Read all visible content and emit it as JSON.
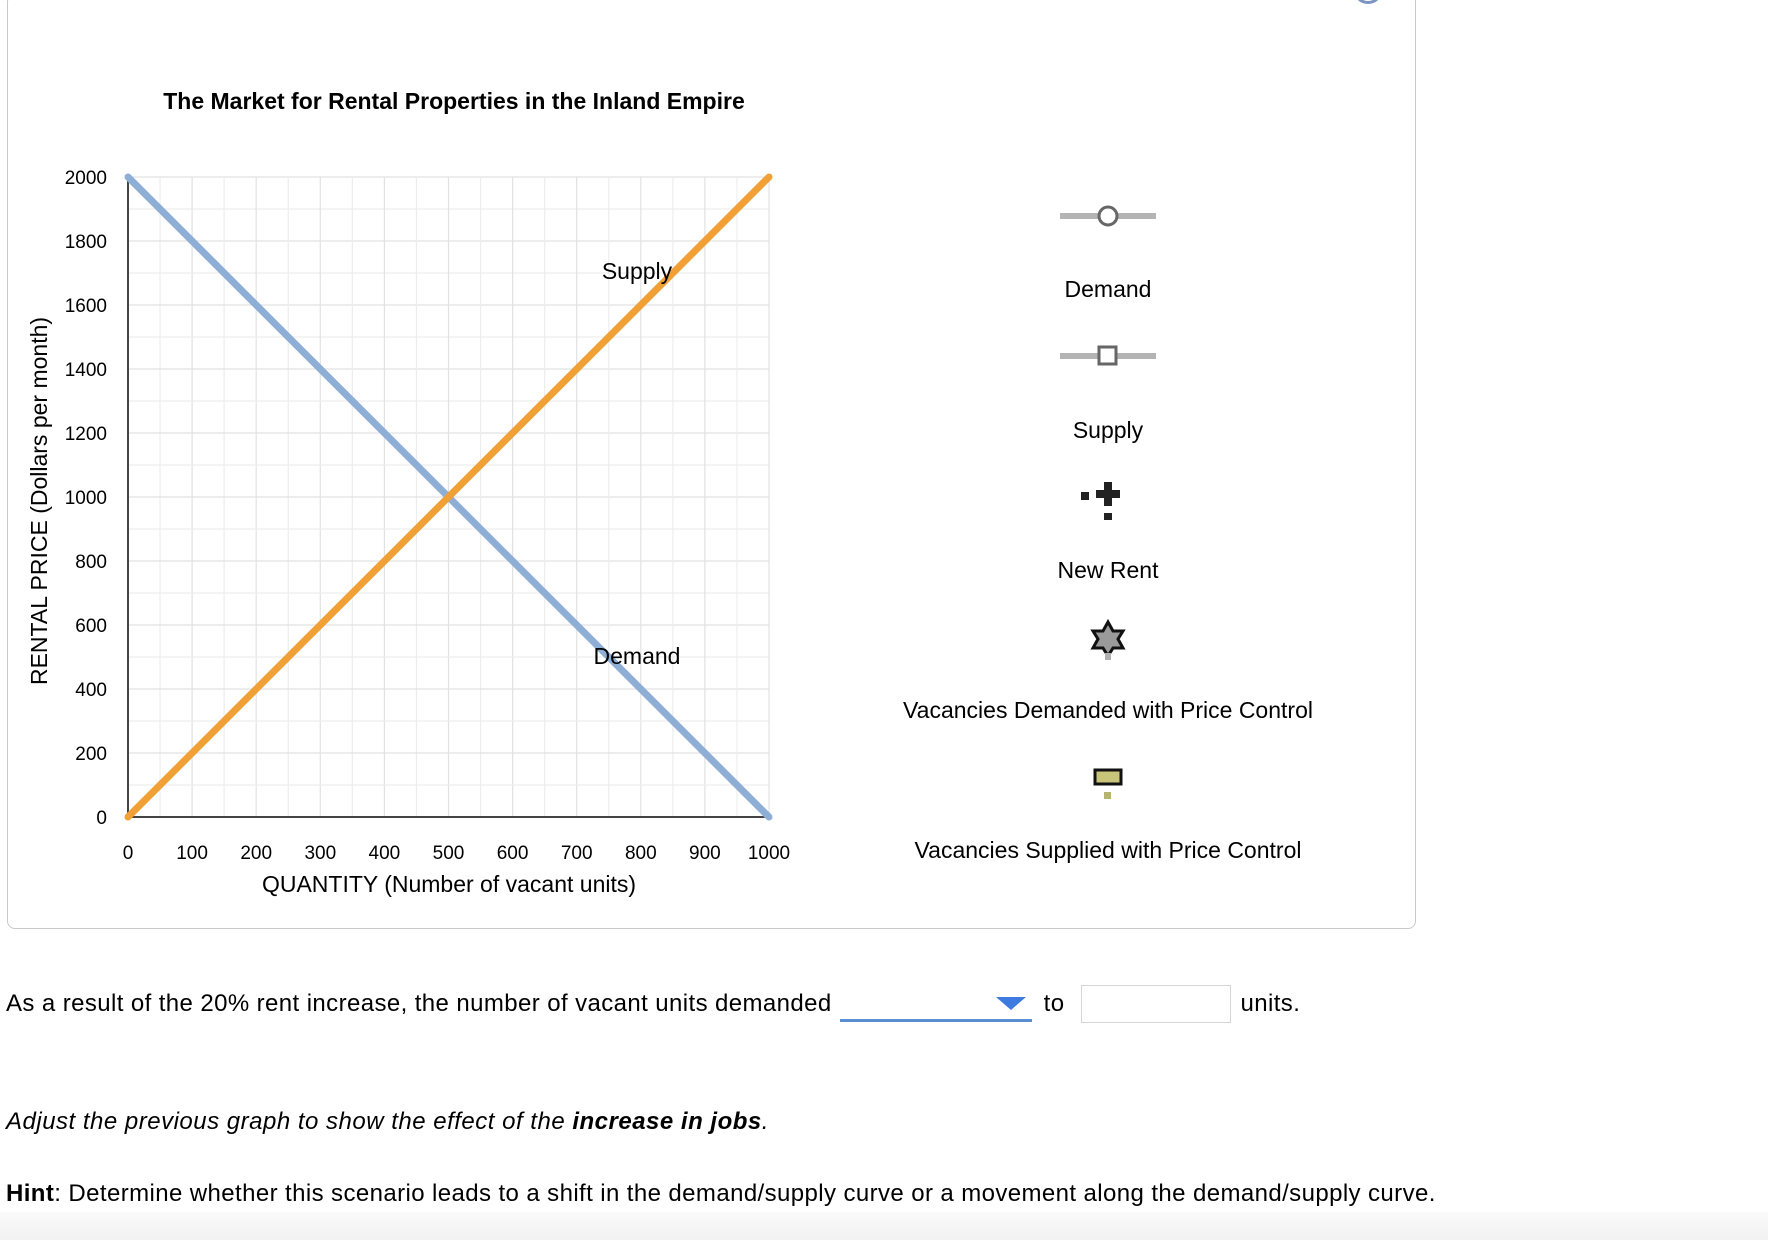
{
  "chart_data": {
    "type": "line",
    "title": "The Market for Rental Properties in the Inland Empire",
    "xlabel": "QUANTITY (Number of vacant units)",
    "ylabel": "RENTAL PRICE (Dollars per month)",
    "xlim": [
      0,
      1000
    ],
    "ylim": [
      0,
      2000
    ],
    "xticks": [
      "0",
      "100",
      "200",
      "300",
      "400",
      "500",
      "600",
      "700",
      "800",
      "900",
      "1000"
    ],
    "yticks": [
      "0",
      "200",
      "400",
      "600",
      "800",
      "1000",
      "1200",
      "1400",
      "1600",
      "1800",
      "2000"
    ],
    "grid": true,
    "series": [
      {
        "name": "Demand",
        "color": "#8eaed6",
        "x": [
          0,
          1000
        ],
        "y": [
          2000,
          0
        ]
      },
      {
        "name": "Supply",
        "color": "#f0a035",
        "x": [
          0,
          1000
        ],
        "y": [
          0,
          2000
        ]
      }
    ],
    "curve_labels": {
      "supply": "Supply",
      "demand": "Demand"
    }
  },
  "legend": {
    "items": [
      {
        "label": "Demand",
        "icon": "circle-marker-icon"
      },
      {
        "label": "Supply",
        "icon": "square-marker-icon"
      },
      {
        "label": "New Rent",
        "icon": "cross-marker-icon"
      },
      {
        "label": "Vacancies Demanded with Price Control",
        "icon": "star-marker-icon"
      },
      {
        "label": "Vacancies Supplied with Price Control",
        "icon": "dash-marker-icon"
      }
    ]
  },
  "question": {
    "text": "As a result of the 20% rent increase, the number of vacant units demanded",
    "dropdown_value": "",
    "to": "to",
    "input_value": "",
    "units": "units."
  },
  "instruction": {
    "before": "Adjust the previous graph to show the effect of the ",
    "emphasis": "increase in jobs",
    "after": "."
  },
  "hint": {
    "label": "Hint",
    "text": ": Determine whether this scenario leads to a shift in the demand/supply curve or a movement along the demand/supply curve."
  }
}
